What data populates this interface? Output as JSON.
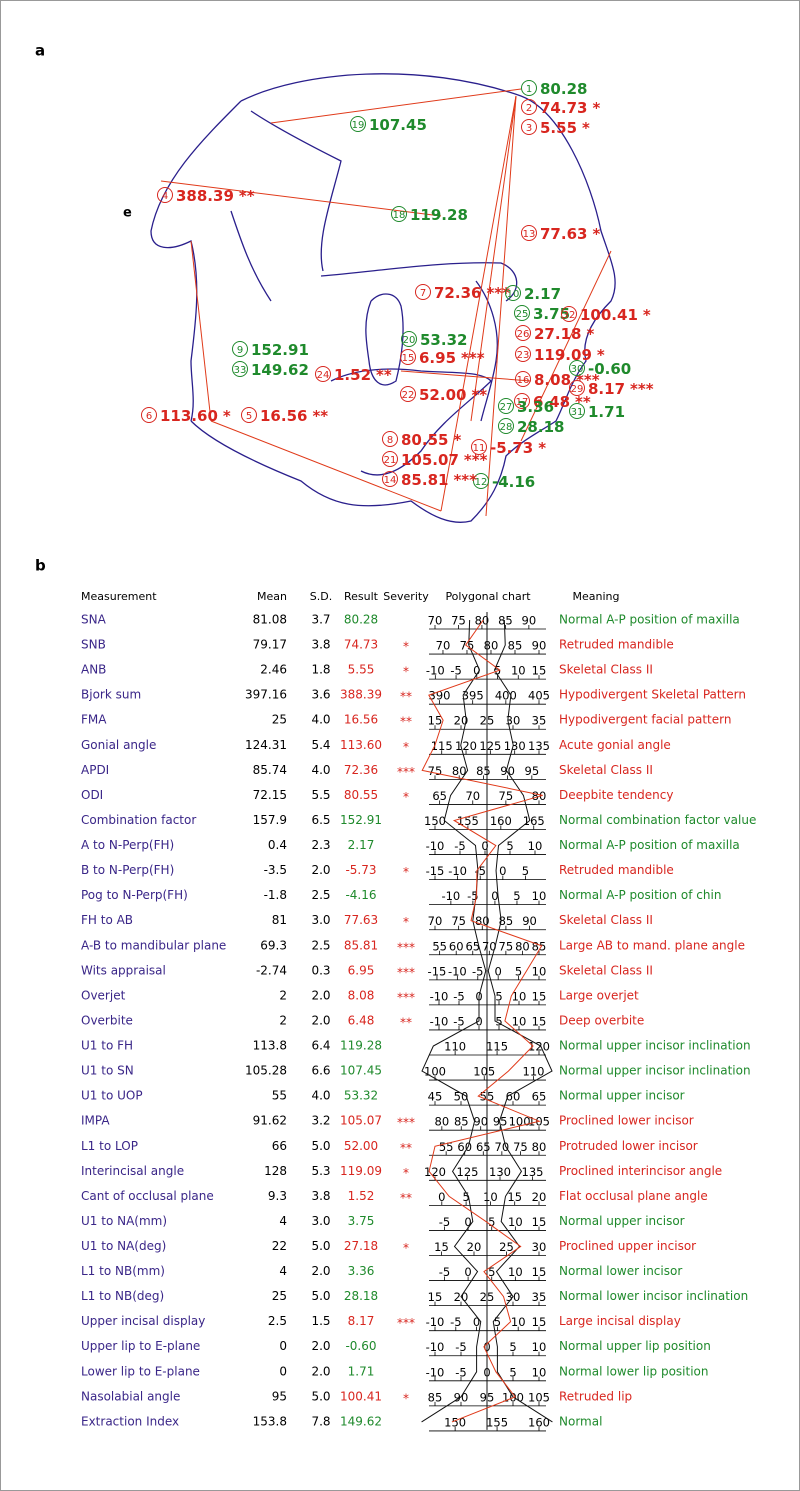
{
  "panel_labels": {
    "a": "a",
    "b": "b",
    "e": "e"
  },
  "colors": {
    "normal": "#1f8a2c",
    "abnormal": "#d8261f",
    "name": "#3a2688",
    "tracing": "#2a1f8c",
    "lines": "#e03a1a",
    "sd_line": "#111111"
  },
  "markers": [
    1,
    2,
    3,
    4,
    5,
    6,
    7,
    8,
    9,
    10,
    11,
    12,
    13,
    14,
    15,
    16,
    17,
    18,
    19,
    20,
    21,
    22,
    23,
    24,
    25,
    26,
    27,
    28,
    29,
    30,
    31,
    32,
    33
  ],
  "table": {
    "headers": [
      "Measurement",
      "Mean",
      "S.D.",
      "Result",
      "Severity",
      "Polygonal chart",
      "Meaning"
    ],
    "rows": [
      {
        "name": "SNA",
        "mean": "81.08",
        "sd": "3.7",
        "result": "80.28",
        "severity": "",
        "meaning": "Normal A-P position of maxilla",
        "ticks": [
          70,
          75,
          80,
          85,
          90
        ]
      },
      {
        "name": "SNB",
        "mean": "79.17",
        "sd": "3.8",
        "result": "74.73",
        "severity": "*",
        "meaning": "Retruded mandible",
        "ticks": [
          70,
          75,
          80,
          85,
          90
        ]
      },
      {
        "name": "ANB",
        "mean": "2.46",
        "sd": "1.8",
        "result": "5.55",
        "severity": "*",
        "meaning": "Skeletal Class II",
        "ticks": [
          -10,
          -5,
          0,
          5,
          10,
          15
        ]
      },
      {
        "name": "Bjork sum",
        "mean": "397.16",
        "sd": "3.6",
        "result": "388.39",
        "severity": "**",
        "meaning": "Hypodivergent Skeletal Pattern",
        "ticks": [
          390,
          395,
          400,
          405
        ]
      },
      {
        "name": "FMA",
        "mean": "25",
        "sd": "4.0",
        "result": "16.56",
        "severity": "**",
        "meaning": "Hypodivergent facial pattern",
        "ticks": [
          15,
          20,
          25,
          30,
          35
        ]
      },
      {
        "name": "Gonial angle",
        "mean": "124.31",
        "sd": "5.4",
        "result": "113.60",
        "severity": "*",
        "meaning": "Acute gonial angle",
        "ticks": [
          115,
          120,
          125,
          130,
          135
        ]
      },
      {
        "name": "APDI",
        "mean": "85.74",
        "sd": "4.0",
        "result": "72.36",
        "severity": "***",
        "meaning": "Skeletal Class II",
        "ticks": [
          75,
          80,
          85,
          90,
          95
        ]
      },
      {
        "name": "ODI",
        "mean": "72.15",
        "sd": "5.5",
        "result": "80.55",
        "severity": "*",
        "meaning": "Deepbite tendency",
        "ticks": [
          65,
          70,
          75,
          80
        ]
      },
      {
        "name": "Combination factor",
        "mean": "157.9",
        "sd": "6.5",
        "result": "152.91",
        "severity": "",
        "meaning": "Normal combination factor value",
        "ticks": [
          150,
          155,
          160,
          165
        ]
      },
      {
        "name": "A to N-Perp(FH)",
        "mean": "0.4",
        "sd": "2.3",
        "result": "2.17",
        "severity": "",
        "meaning": "Normal A-P position of maxilla",
        "ticks": [
          -10,
          -5,
          0,
          5,
          10
        ]
      },
      {
        "name": "B to N-Perp(FH)",
        "mean": "-3.5",
        "sd": "2.0",
        "result": "-5.73",
        "severity": "*",
        "meaning": "Retruded mandible",
        "ticks": [
          -15,
          -10,
          -5,
          0,
          5
        ]
      },
      {
        "name": "Pog to N-Perp(FH)",
        "mean": "-1.8",
        "sd": "2.5",
        "result": "-4.16",
        "severity": "",
        "meaning": "Normal A-P position of chin",
        "ticks": [
          -10,
          -5,
          0,
          5,
          10
        ]
      },
      {
        "name": "FH to AB",
        "mean": "81",
        "sd": "3.0",
        "result": "77.63",
        "severity": "*",
        "meaning": "Skeletal Class II",
        "ticks": [
          70,
          75,
          80,
          85,
          90
        ]
      },
      {
        "name": "A-B to mandibular plane",
        "mean": "69.3",
        "sd": "2.5",
        "result": "85.81",
        "severity": "***",
        "meaning": "Large AB to mand. plane angle",
        "ticks": [
          55,
          60,
          65,
          70,
          75,
          80,
          85
        ]
      },
      {
        "name": "Wits appraisal",
        "mean": "-2.74",
        "sd": "0.3",
        "result": "6.95",
        "severity": "***",
        "meaning": "Skeletal Class II",
        "ticks": [
          -15,
          -10,
          -5,
          0,
          5,
          10
        ]
      },
      {
        "name": "Overjet",
        "mean": "2",
        "sd": "2.0",
        "result": "8.08",
        "severity": "***",
        "meaning": "Large overjet",
        "ticks": [
          -10,
          -5,
          0,
          5,
          10,
          15
        ]
      },
      {
        "name": "Overbite",
        "mean": "2",
        "sd": "2.0",
        "result": "6.48",
        "severity": "**",
        "meaning": "Deep overbite",
        "ticks": [
          -10,
          -5,
          0,
          5,
          10,
          15
        ]
      },
      {
        "name": "U1 to FH",
        "mean": "113.8",
        "sd": "6.4",
        "result": "119.28",
        "severity": "",
        "meaning": "Normal upper incisor inclination",
        "ticks": [
          110,
          115,
          120
        ]
      },
      {
        "name": "U1 to SN",
        "mean": "105.28",
        "sd": "6.6",
        "result": "107.45",
        "severity": "",
        "meaning": "Normal upper incisor inclination",
        "ticks": [
          100,
          105,
          110
        ]
      },
      {
        "name": "U1 to UOP",
        "mean": "55",
        "sd": "4.0",
        "result": "53.32",
        "severity": "",
        "meaning": "Normal upper incisor",
        "ticks": [
          45,
          50,
          55,
          60,
          65
        ]
      },
      {
        "name": "IMPA",
        "mean": "91.62",
        "sd": "3.2",
        "result": "105.07",
        "severity": "***",
        "meaning": "Proclined lower incisor",
        "ticks": [
          80,
          85,
          90,
          95,
          100,
          105
        ]
      },
      {
        "name": "L1 to LOP",
        "mean": "66",
        "sd": "5.0",
        "result": "52.00",
        "severity": "**",
        "meaning": "Protruded lower incisor",
        "ticks": [
          55,
          60,
          65,
          70,
          75,
          80
        ]
      },
      {
        "name": "Interincisal angle",
        "mean": "128",
        "sd": "5.3",
        "result": "119.09",
        "severity": "*",
        "meaning": "Proclined interincisor angle",
        "ticks": [
          120,
          125,
          130,
          135
        ]
      },
      {
        "name": "Cant of occlusal plane",
        "mean": "9.3",
        "sd": "3.8",
        "result": "1.52",
        "severity": "**",
        "meaning": "Flat occlusal plane angle",
        "ticks": [
          0,
          5,
          10,
          15,
          20
        ]
      },
      {
        "name": "U1 to NA(mm)",
        "mean": "4",
        "sd": "3.0",
        "result": "3.75",
        "severity": "",
        "meaning": "Normal upper incisor",
        "ticks": [
          -5,
          0,
          5,
          10,
          15
        ]
      },
      {
        "name": "U1 to NA(deg)",
        "mean": "22",
        "sd": "5.0",
        "result": "27.18",
        "severity": "*",
        "meaning": "Proclined upper incisor",
        "ticks": [
          15,
          20,
          25,
          30
        ]
      },
      {
        "name": "L1 to NB(mm)",
        "mean": "4",
        "sd": "2.0",
        "result": "3.36",
        "severity": "",
        "meaning": "Normal lower incisor",
        "ticks": [
          -5,
          0,
          5,
          10,
          15
        ]
      },
      {
        "name": "L1 to NB(deg)",
        "mean": "25",
        "sd": "5.0",
        "result": "28.18",
        "severity": "",
        "meaning": "Normal lower incisor inclination",
        "ticks": [
          15,
          20,
          25,
          30,
          35
        ]
      },
      {
        "name": "Upper incisal display",
        "mean": "2.5",
        "sd": "1.5",
        "result": "8.17",
        "severity": "***",
        "meaning": "Large incisal display",
        "ticks": [
          -10,
          -5,
          0,
          5,
          10,
          15
        ]
      },
      {
        "name": "Upper lip to E-plane",
        "mean": "0",
        "sd": "2.0",
        "result": "-0.60",
        "severity": "",
        "meaning": "Normal upper lip position",
        "ticks": [
          -10,
          -5,
          0,
          5,
          10
        ]
      },
      {
        "name": "Lower lip to E-plane",
        "mean": "0",
        "sd": "2.0",
        "result": "1.71",
        "severity": "",
        "meaning": "Normal lower lip position",
        "ticks": [
          -10,
          -5,
          0,
          5,
          10
        ]
      },
      {
        "name": "Nasolabial angle",
        "mean": "95",
        "sd": "5.0",
        "result": "100.41",
        "severity": "*",
        "meaning": "Retruded lip",
        "ticks": [
          85,
          90,
          95,
          100,
          105
        ]
      },
      {
        "name": "Extraction Index",
        "mean": "153.8",
        "sd": "7.8",
        "result": "149.62",
        "severity": "",
        "meaning": "Normal",
        "ticks": [
          150,
          155,
          160
        ]
      }
    ]
  }
}
